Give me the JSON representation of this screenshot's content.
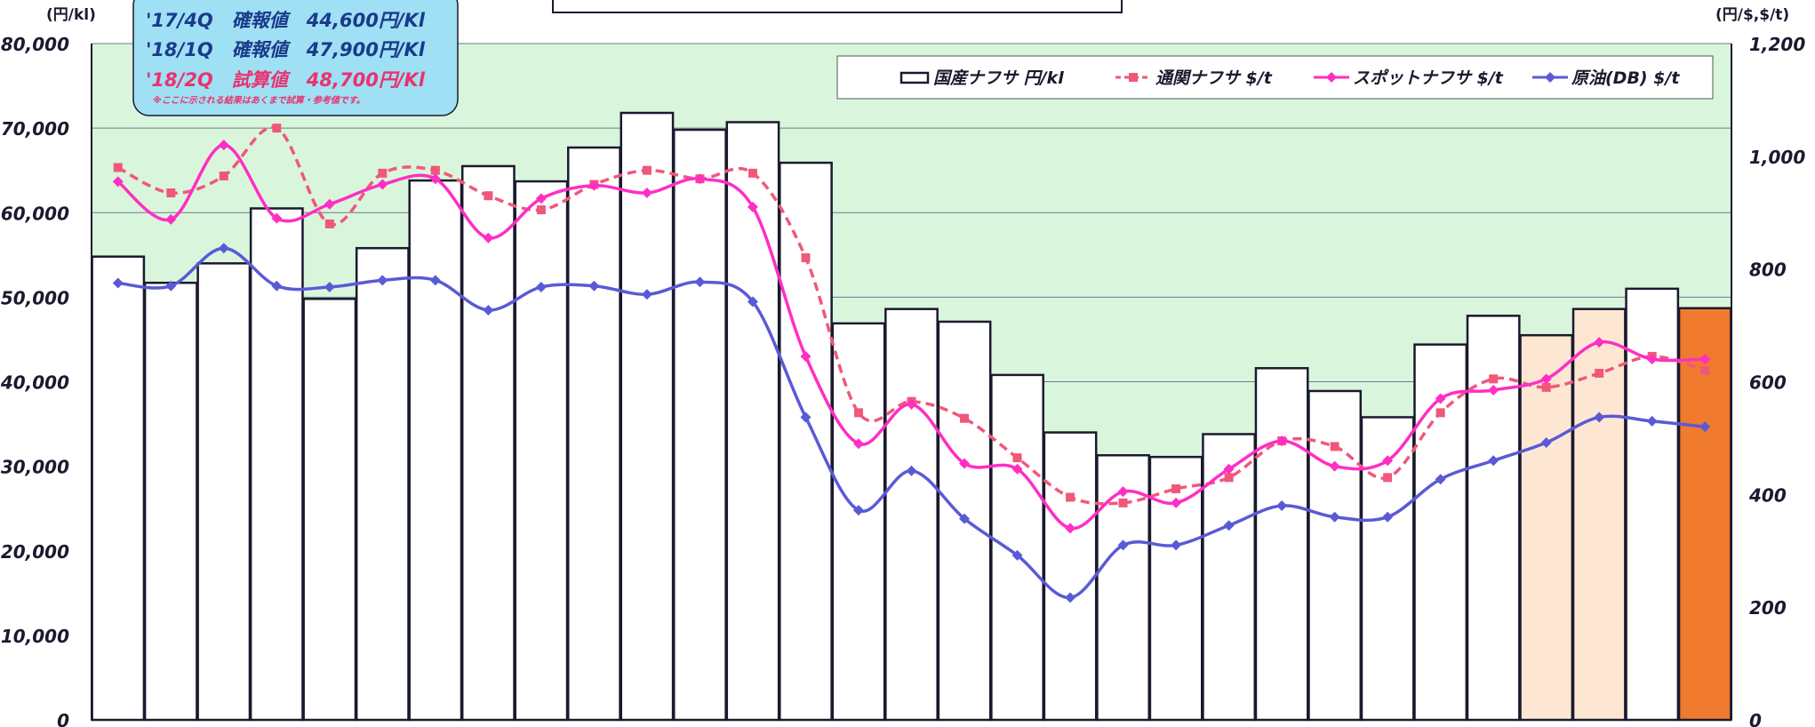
{
  "chart_data": {
    "type": "bar",
    "title": "",
    "left_axis": {
      "unit": "(円/kl)",
      "ylim": [
        0,
        80000
      ],
      "ticks": [
        "0",
        "10,000",
        "20,000",
        "30,000",
        "40,000",
        "50,000",
        "60,000",
        "70,000",
        "80,000"
      ]
    },
    "right_axis": {
      "unit": "(円/$,$/t)",
      "ylim": [
        0,
        1200
      ],
      "ticks": [
        "0",
        "200",
        "400",
        "600",
        "800",
        "1,000",
        "1,200"
      ]
    },
    "legend_position": "top-right",
    "grid": true,
    "series": [
      {
        "name": "国産ナフサ 円/kl",
        "kind": "bar",
        "axis": "left",
        "values": [
          54800,
          51700,
          54000,
          60500,
          49800,
          55800,
          63800,
          65500,
          63700,
          67700,
          71800,
          69800,
          70700,
          65900,
          46900,
          48600,
          47100,
          40800,
          34000,
          31300,
          31100,
          33800,
          41600,
          38900,
          35800,
          44400,
          47800,
          45500,
          48600,
          51000,
          48700
        ]
      },
      {
        "name": "通関ナフサ $/t",
        "kind": "line",
        "style": "dashed",
        "marker": "square",
        "axis": "right",
        "color": "#f0587a",
        "values": [
          980,
          935,
          965,
          1050,
          880,
          970,
          975,
          930,
          905,
          950,
          975,
          960,
          970,
          820,
          545,
          565,
          535,
          465,
          395,
          385,
          410,
          430,
          495,
          485,
          430,
          545,
          605,
          590,
          615,
          645,
          620
        ]
      },
      {
        "name": "スポットナフサ $/t",
        "kind": "line",
        "style": "solid",
        "marker": "diamond",
        "axis": "right",
        "color": "#ff2ec4",
        "values": [
          955,
          888,
          1020,
          890,
          915,
          950,
          960,
          855,
          925,
          948,
          935,
          960,
          910,
          645,
          490,
          560,
          455,
          445,
          340,
          405,
          385,
          445,
          495,
          450,
          460,
          570,
          585,
          605,
          670,
          640,
          640
        ]
      },
      {
        "name": "原油(DB) $/t",
        "kind": "line",
        "style": "solid",
        "marker": "diamond",
        "axis": "right",
        "color": "#5a5ad6",
        "values": [
          775,
          770,
          837,
          770,
          768,
          780,
          780,
          727,
          768,
          770,
          755,
          777,
          742,
          537,
          372,
          442,
          357,
          292,
          217,
          310,
          310,
          345,
          380,
          360,
          360,
          427,
          460,
          492,
          537,
          530,
          520
        ]
      }
    ],
    "bar_styles": {
      "normal": "#ffffff",
      "highlight_light": "#fde7d3",
      "highlight_strong": "#f07a2e",
      "light_indices": [
        27,
        28
      ],
      "strong_indices": [
        30
      ]
    },
    "colors": {
      "plot_background": "#d9f6dd",
      "bar_edge": "#1a1a2e"
    }
  },
  "info_box": {
    "line1": "'17/4Q　確報値　44,600円/Kl",
    "line2": "'18/1Q　確報値　47,900円/Kl",
    "line3": "'18/2Q　試算値　48,700円/Kl",
    "note": "※ここに示される結果はあくまで試算・参考値です。",
    "colors": {
      "bg": "#9fe0f4",
      "line12": "#1a3a8a",
      "line3": "#e8336e"
    }
  }
}
